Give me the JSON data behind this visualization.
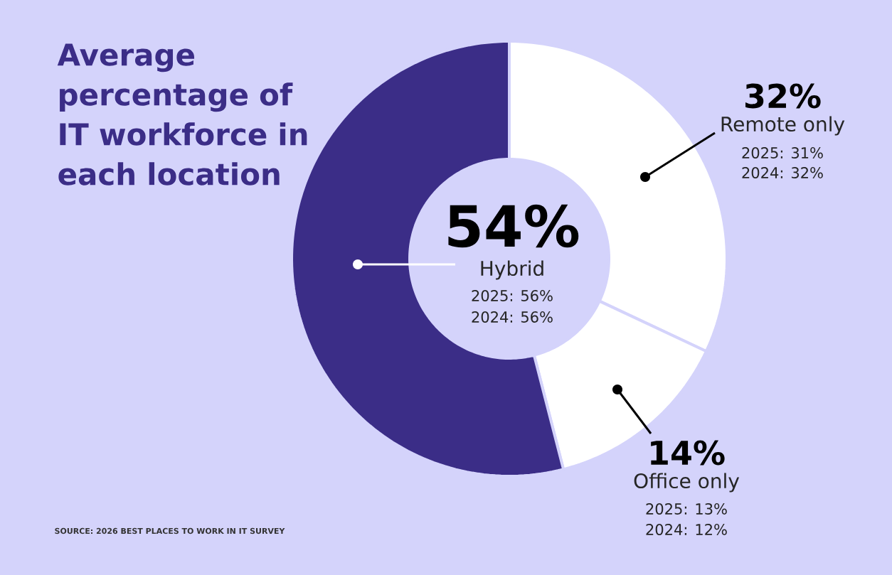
{
  "chart_data": {
    "type": "donut",
    "title": "Average percentage of IT workforce in each location",
    "categories": [
      "Remote only",
      "Office only",
      "Hybrid"
    ],
    "values": [
      32,
      14,
      54
    ],
    "colors": [
      "#ffffff",
      "#ffffff",
      "#3b2d87"
    ],
    "value_labels": [
      "32%",
      "14%",
      "54%"
    ],
    "annotations": [
      "2025: 31%",
      "2024: 32%",
      "2025: 13%",
      "2024: 12%",
      "2025: 56%",
      "2024: 56%",
      "SOURCE: 2026 BEST PLACES TO WORK IN IT SURVEY"
    ]
  }
}
